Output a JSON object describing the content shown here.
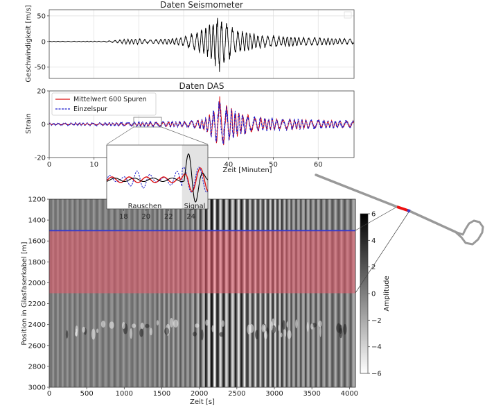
{
  "chart_data": [
    {
      "id": "seismometer",
      "type": "line",
      "title": "Daten Seismometer",
      "xlabel": "",
      "ylabel": "Geschwindigkeit [m/s]",
      "xlim": [
        0,
        68
      ],
      "ylim": [
        -72,
        62
      ],
      "yticks": [
        -50,
        0,
        50
      ],
      "grid": true,
      "series": [
        {
          "color": "#000000",
          "envelope": {
            "x": [
              0,
              12,
              14,
              17,
              20,
              22,
              25,
              28,
              30,
              32,
              34,
              36,
              37,
              38,
              38.5,
              39,
              40,
              41,
              42,
              43,
              44,
              46,
              48,
              50,
              53,
              56,
              60,
              64,
              68
            ],
            "amplitude": [
              0.5,
              0.8,
              2,
              5,
              6,
              4,
              5,
              7,
              10,
              17,
              26,
              35,
              48,
              68,
              40,
              52,
              38,
              30,
              25,
              22,
              20,
              15,
              13,
              12,
              11,
              9,
              8,
              7,
              6
            ]
          }
        }
      ]
    },
    {
      "id": "das",
      "type": "line",
      "title": "Daten DAS",
      "xlabel": "Zeit [Minuten]",
      "ylabel": "Strain",
      "xlim": [
        0,
        68
      ],
      "ylim": [
        -20,
        20
      ],
      "xticks": [
        0,
        10,
        20,
        30,
        40,
        50,
        60
      ],
      "yticks": [
        -20,
        0,
        20
      ],
      "grid": true,
      "legend": "top-left",
      "series": [
        {
          "name": "Mittelwert 600 Spuren",
          "color": "#dd1111",
          "style": "solid",
          "envelope": {
            "x": [
              0,
              14,
              18,
              22,
              26,
              30,
              33,
              35,
              37,
              38,
              39,
              40,
              41,
              42,
              44,
              46,
              48,
              50,
              55,
              60,
              68
            ],
            "amplitude": [
              0.3,
              0.6,
              0.8,
              1.0,
              1.5,
              1.5,
              2.5,
              4,
              10,
              17,
              14,
              11,
              9,
              8,
              6,
              4.5,
              4,
              3.5,
              3,
              2.5,
              2
            ]
          }
        },
        {
          "name": "Einzelspur",
          "color": "#1a1acc",
          "style": "dashed",
          "envelope": {
            "x": [
              0,
              14,
              18,
              22,
              26,
              30,
              33,
              35,
              37,
              38,
              39,
              40,
              41,
              42,
              44,
              46,
              48,
              50,
              55,
              60,
              68
            ],
            "amplitude": [
              0.8,
              1.2,
              1.5,
              1.6,
              2,
              2,
              3,
              4.5,
              11,
              16,
              13,
              10,
              9,
              8,
              6,
              5,
              4.5,
              4,
              3.5,
              3,
              2.5
            ]
          }
        }
      ],
      "inset": {
        "xlim": [
          16.5,
          25.5
        ],
        "xticks": [
          18,
          20,
          22,
          24
        ],
        "labels": [
          "Rauschen",
          "Signal"
        ],
        "signal_window": [
          23.2,
          25.5
        ]
      }
    },
    {
      "id": "das-matrix",
      "type": "heatmap",
      "xlabel": "Zeit [s]",
      "ylabel": "Position in Glasfaserkabel [m]",
      "xlim": [
        0,
        4080
      ],
      "ylim": [
        3000,
        1200
      ],
      "xticks": [
        0,
        500,
        1000,
        1500,
        2000,
        2500,
        3000,
        3500,
        4000
      ],
      "yticks": [
        1200,
        1400,
        1600,
        1800,
        2000,
        2200,
        2400,
        2600,
        2800,
        3000
      ],
      "colorbar": {
        "label": "Amplitude",
        "range": [
          -6,
          6
        ],
        "ticks": [
          6,
          4,
          2,
          0,
          -2,
          -4,
          -6
        ],
        "colormap": "white-to-black"
      },
      "highlight": {
        "band": [
          1500,
          2100
        ],
        "color": "#e8596a",
        "line_at": 1500,
        "line_color": "#3c3cc8"
      },
      "cable_map": {
        "color": "#999999",
        "highlight_color": "#ee1111"
      }
    }
  ]
}
